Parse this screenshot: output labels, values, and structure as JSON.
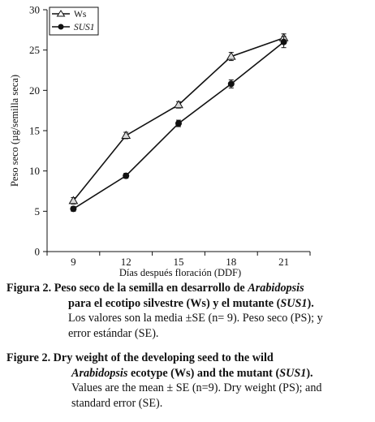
{
  "chart_data": {
    "type": "line",
    "x": [
      9,
      12,
      15,
      18,
      21
    ],
    "xlabel": "Días después floración (DDF)",
    "ylabel": "Peso seco (µg/semilla seca)",
    "ylim": [
      0,
      30
    ],
    "yticks": [
      0,
      5,
      10,
      15,
      20,
      25,
      30
    ],
    "grid": false,
    "legend_placement": "top-left",
    "series": [
      {
        "name": "Ws",
        "marker": "triangle-open",
        "values": [
          6.3,
          14.4,
          18.2,
          24.2,
          26.5
        ],
        "err": [
          0.4,
          0.4,
          0.4,
          0.5,
          0.5
        ]
      },
      {
        "name": "SUS1",
        "marker": "circle-filled",
        "values": [
          5.3,
          9.4,
          15.9,
          20.8,
          26.0
        ],
        "err": [
          0.3,
          0.3,
          0.4,
          0.5,
          0.7
        ]
      }
    ]
  },
  "caption_es": {
    "lead": "Figura 2.",
    "line1": "Peso seco de la semilla en desarrollo de",
    "line1_italic": "Arabidopsis",
    "line2_a": "para el ecotipo silvestre (Ws) y el mutante (",
    "line2_italic": "SUS1",
    "line2_b": ").",
    "line3": "Los valores son la media ±SE (n= 9). Peso seco (PS); y",
    "line4": "error estándar (SE)."
  },
  "caption_en": {
    "lead": "Figure 2.",
    "line1": "Dry weight of the developing seed to the wild",
    "line2_italic": "Arabidopsis",
    "line2_a": "ecotype (Ws) and the mutant (",
    "line2_italic2": "SUS1",
    "line2_b": ").",
    "line3": "Values are the mean ± SE (n=9). Dry weight (PS); and",
    "line4": "standard error (SE)."
  }
}
